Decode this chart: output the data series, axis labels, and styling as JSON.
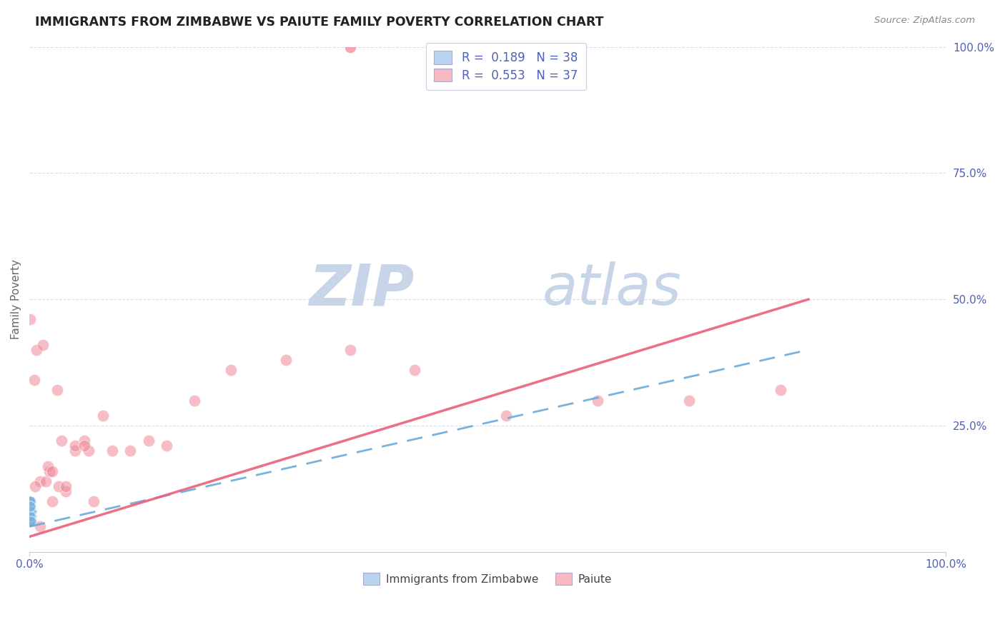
{
  "title": "IMMIGRANTS FROM ZIMBABWE VS PAIUTE FAMILY POVERTY CORRELATION CHART",
  "source_text": "Source: ZipAtlas.com",
  "ylabel": "Family Poverty",
  "xlim": [
    0,
    1
  ],
  "ylim": [
    0,
    1
  ],
  "blue_color": "#7ab4e0",
  "pink_color": "#f08898",
  "blue_line_color": "#6aaad8",
  "pink_line_color": "#e8607a",
  "grid_color": "#d8dce8",
  "background_color": "#ffffff",
  "watermark_color": "#c8d4e8",
  "tick_color": "#5060b8",
  "blue_scatter_x": [
    0.0005,
    0.001,
    0.001,
    0.0015,
    0.0008,
    0.002,
    0.0012,
    0.0007,
    0.001,
    0.0015,
    0.0005,
    0.001,
    0.0008,
    0.0012,
    0.002,
    0.0015,
    0.001,
    0.0005,
    0.0018,
    0.001,
    0.0007,
    0.0015,
    0.001,
    0.0005,
    0.0012,
    0.0008,
    0.002,
    0.001,
    0.0015,
    0.0005,
    0.001,
    0.0012,
    0.002,
    0.0008,
    0.0015,
    0.001,
    0.0018,
    0.0007
  ],
  "blue_scatter_y": [
    0.06,
    0.08,
    0.1,
    0.06,
    0.07,
    0.08,
    0.09,
    0.06,
    0.1,
    0.07,
    0.08,
    0.06,
    0.09,
    0.07,
    0.08,
    0.1,
    0.06,
    0.07,
    0.09,
    0.08,
    0.06,
    0.1,
    0.07,
    0.09,
    0.06,
    0.08,
    0.07,
    0.1,
    0.06,
    0.08,
    0.09,
    0.07,
    0.06,
    0.1,
    0.08,
    0.07,
    0.06,
    0.09
  ],
  "pink_scatter_x": [
    0.001,
    0.005,
    0.008,
    0.012,
    0.015,
    0.018,
    0.022,
    0.025,
    0.03,
    0.035,
    0.04,
    0.05,
    0.06,
    0.065,
    0.08,
    0.09,
    0.11,
    0.13,
    0.15,
    0.18,
    0.22,
    0.28,
    0.35,
    0.42,
    0.52,
    0.62,
    0.72,
    0.82,
    0.006,
    0.012,
    0.02,
    0.025,
    0.032,
    0.04,
    0.05,
    0.06,
    0.07
  ],
  "pink_scatter_y": [
    0.46,
    0.34,
    0.4,
    0.14,
    0.41,
    0.14,
    0.16,
    0.1,
    0.32,
    0.22,
    0.12,
    0.2,
    0.22,
    0.2,
    0.27,
    0.2,
    0.2,
    0.22,
    0.21,
    0.3,
    0.36,
    0.38,
    0.4,
    0.36,
    0.27,
    0.3,
    0.3,
    0.32,
    0.13,
    0.05,
    0.17,
    0.16,
    0.13,
    0.13,
    0.21,
    0.21,
    0.1
  ],
  "pink_outlier_x": [
    0.35
  ],
  "pink_outlier_y": [
    1.0
  ],
  "blue_line_x": [
    0.0,
    0.85
  ],
  "blue_line_y": [
    0.05,
    0.4
  ],
  "pink_line_x": [
    0.0,
    0.85
  ],
  "pink_line_y": [
    0.03,
    0.5
  ]
}
